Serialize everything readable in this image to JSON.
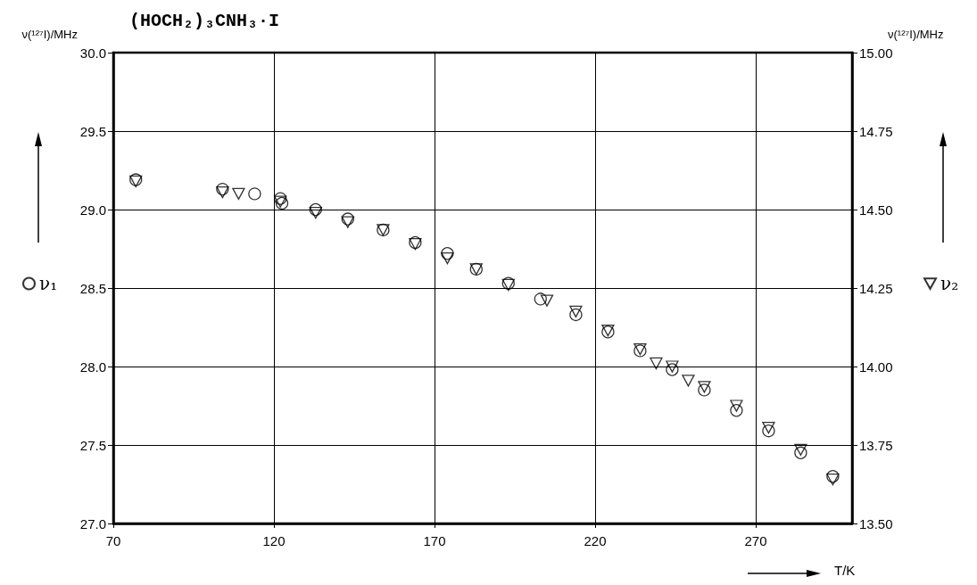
{
  "chart_data": {
    "type": "scatter",
    "title": "(HOCH₂)₃CNH₃·I",
    "xlabel": "T/K",
    "ylabel": "ν(¹²⁷I)/MHz",
    "y2label": "ν(¹²⁷I)/MHz",
    "xlim": [
      70,
      300
    ],
    "xticks": [
      70,
      120,
      170,
      220,
      270
    ],
    "ylim": [
      27.0,
      30.0
    ],
    "yticks": [
      {
        "value": 27,
        "label": "27.0"
      },
      {
        "value": 27.5,
        "label": "27.5"
      },
      {
        "value": 28,
        "label": "28.0"
      },
      {
        "value": 28.5,
        "label": "28.5"
      },
      {
        "value": 29,
        "label": "29.0"
      },
      {
        "value": 29.5,
        "label": "29.5"
      },
      {
        "value": 30,
        "label": "30.0"
      }
    ],
    "y2lim": [
      13.5,
      15.0
    ],
    "y2ticks": [
      {
        "value": 13.5,
        "label": "13.50"
      },
      {
        "value": 13.75,
        "label": "13.75"
      },
      {
        "value": 14,
        "label": "14.00"
      },
      {
        "value": 14.25,
        "label": "14.25"
      },
      {
        "value": 14.5,
        "label": "14.50"
      },
      {
        "value": 14.75,
        "label": "14.75"
      },
      {
        "value": 15,
        "label": "15.00"
      }
    ],
    "grid": true,
    "legend": "left",
    "series": [
      {
        "name": "ν₁",
        "color": "#000000",
        "marker": "circle",
        "x": [
          77,
          104,
          114,
          122,
          122.5,
          133,
          143,
          154,
          164,
          174,
          183,
          193,
          203,
          214,
          224,
          234,
          244,
          254,
          264,
          274,
          284,
          294
        ],
        "values": [
          29.19,
          29.13,
          29.1,
          29.07,
          29.04,
          29.0,
          28.94,
          28.87,
          28.79,
          28.72,
          28.62,
          28.53,
          28.43,
          28.33,
          28.22,
          28.1,
          27.98,
          27.85,
          27.72,
          27.59,
          27.45,
          27.3
        ]
      },
      {
        "name": "ν₂",
        "color": "#000000",
        "marker": "triangle",
        "axis": "y2",
        "x": [
          77,
          104,
          109,
          122,
          133,
          143,
          154,
          164,
          174,
          183,
          193,
          205,
          214,
          224,
          234,
          239,
          244,
          249,
          254,
          264,
          274,
          284,
          294
        ],
        "values": [
          14.59,
          14.555,
          14.55,
          14.525,
          14.49,
          14.46,
          14.435,
          14.39,
          14.345,
          14.31,
          14.26,
          14.21,
          14.175,
          14.115,
          14.055,
          14.01,
          14.0,
          13.955,
          13.935,
          13.875,
          13.805,
          13.735,
          13.64
        ]
      }
    ]
  }
}
